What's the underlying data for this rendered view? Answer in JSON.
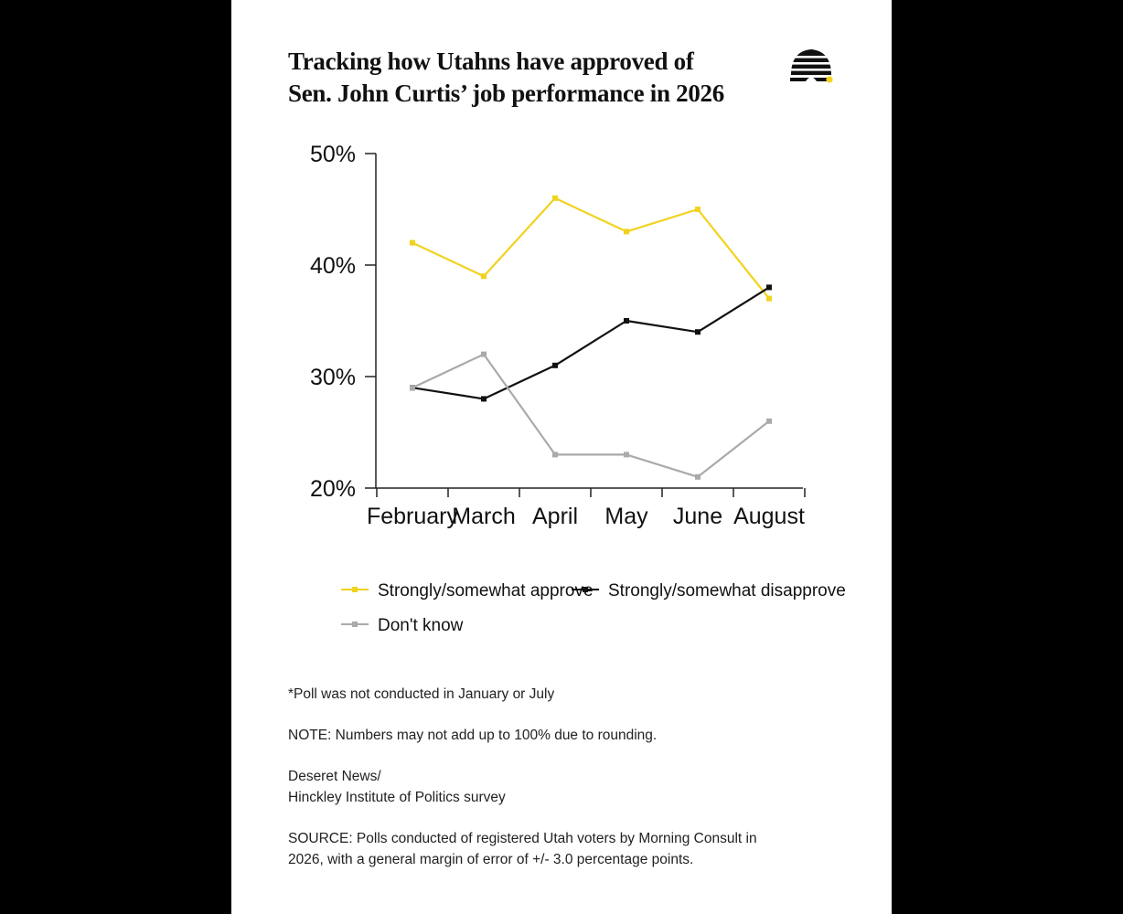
{
  "title_lines": [
    "Tracking how Utahns have approved of",
    "Sen. John Curtis’ job performance in 2026"
  ],
  "logo": {
    "icon": "beehive-icon",
    "color": "#111111",
    "accent": "#f2d21e"
  },
  "chart_data": {
    "type": "line",
    "categories": [
      "February",
      "March",
      "April",
      "May",
      "June",
      "August"
    ],
    "series": [
      {
        "name": "Strongly/somewhat approve",
        "color": "#f2d21e",
        "values": [
          42,
          39,
          46,
          43,
          45,
          37
        ]
      },
      {
        "name": "Strongly/somewhat disapprove",
        "color": "#111111",
        "values": [
          29,
          28,
          31,
          35,
          34,
          38
        ]
      },
      {
        "name": "Don't know",
        "color": "#aaaaaa",
        "values": [
          29,
          32,
          23,
          23,
          21,
          26
        ]
      }
    ],
    "yticks": [
      20,
      30,
      40,
      50
    ],
    "ytick_labels": [
      "20%",
      "30%",
      "40%",
      "50%"
    ],
    "ylim": [
      20,
      50
    ],
    "xlabel": "",
    "ylabel": "",
    "grid": false,
    "legend_position": "bottom"
  },
  "notes": [
    {
      "lines": [
        "*Poll was not conducted in January or July"
      ]
    },
    {
      "lines": [
        "NOTE: Numbers may not add up to 100% due to rounding."
      ]
    },
    {
      "lines": [
        "Deseret News/",
        "Hinckley Institute of Politics survey"
      ]
    },
    {
      "lines": [
        "SOURCE: Polls conducted of registered Utah voters by Morning Consult in",
        "2026, with a general margin of error of +/- 3.0 percentage points."
      ]
    }
  ]
}
